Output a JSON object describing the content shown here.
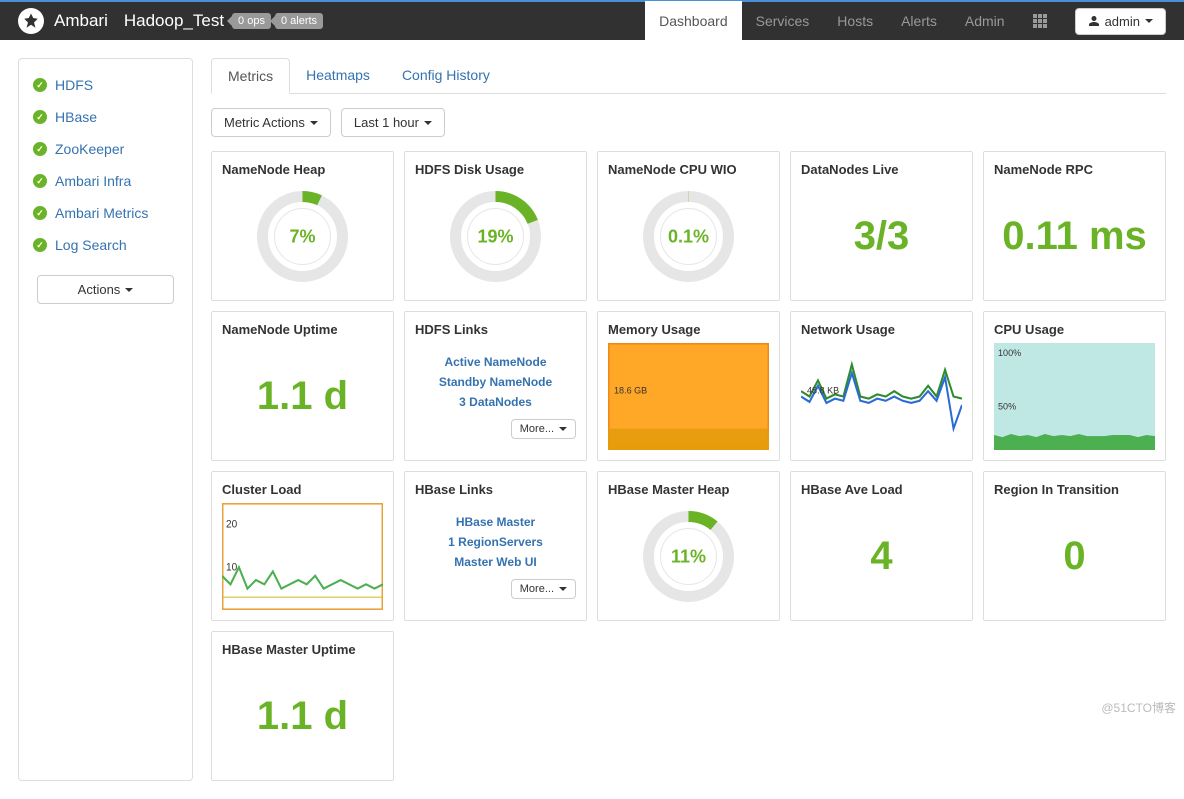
{
  "colors": {
    "accent": "#6bb326",
    "link": "#3572b0",
    "border": "#dddddd",
    "navbg": "#313131",
    "muted": "#999999"
  },
  "topnav": {
    "brand": "Ambari",
    "cluster": "Hadoop_Test",
    "badges": {
      "ops": "0 ops",
      "alerts": "0 alerts"
    },
    "items": [
      {
        "label": "Dashboard",
        "active": true
      },
      {
        "label": "Services"
      },
      {
        "label": "Hosts"
      },
      {
        "label": "Alerts"
      },
      {
        "label": "Admin"
      }
    ],
    "user_label": "admin"
  },
  "sidebar": {
    "items": [
      {
        "label": "HDFS"
      },
      {
        "label": "HBase"
      },
      {
        "label": "ZooKeeper"
      },
      {
        "label": "Ambari Infra"
      },
      {
        "label": "Ambari Metrics"
      },
      {
        "label": "Log Search"
      }
    ],
    "actions_label": "Actions"
  },
  "tabs": [
    {
      "label": "Metrics",
      "active": true
    },
    {
      "label": "Heatmaps"
    },
    {
      "label": "Config History"
    }
  ],
  "toolbar": {
    "metric_actions": "Metric Actions",
    "time_range": "Last 1 hour"
  },
  "more_label": "More...",
  "widgets": {
    "nn_heap": {
      "title": "NameNode Heap",
      "type": "donut",
      "pct": 7,
      "label": "7%",
      "ring_color": "#6bb326",
      "track_color": "#e6e6e6"
    },
    "hdfs_disk": {
      "title": "HDFS Disk Usage",
      "type": "donut",
      "pct": 19,
      "label": "19%",
      "ring_color": "#6bb326",
      "track_color": "#e6e6e6"
    },
    "nn_cpu": {
      "title": "NameNode CPU WIO",
      "type": "donut",
      "pct": 0.1,
      "label": "0.1%",
      "ring_color": "#6bb326",
      "track_color": "#e6e6e6"
    },
    "dn_live": {
      "title": "DataNodes Live",
      "type": "bignum",
      "value": "3/3"
    },
    "nn_rpc": {
      "title": "NameNode RPC",
      "type": "bignum",
      "value": "0.11 ms"
    },
    "nn_uptime": {
      "title": "NameNode Uptime",
      "type": "bignum",
      "value": "1.1 d"
    },
    "hdfs_links": {
      "title": "HDFS Links",
      "type": "links",
      "links": [
        "Active NameNode",
        "Standby NameNode",
        "3 DataNodes"
      ]
    },
    "mem": {
      "title": "Memory Usage",
      "type": "area",
      "annotation": "18.6 GB",
      "border_color": "#b030b0",
      "y_max": 40,
      "series": [
        {
          "color": "#d8c030",
          "values": [
            3,
            3,
            3,
            3,
            3,
            3,
            3,
            3,
            3,
            3,
            3,
            3,
            3,
            3,
            3,
            3,
            3,
            3,
            3,
            3
          ]
        },
        {
          "color": "#4caf50",
          "values": [
            5,
            5,
            5,
            5,
            5,
            5,
            5,
            5,
            5,
            5,
            5,
            5,
            5,
            5,
            5,
            5,
            5,
            5,
            5,
            5
          ]
        },
        {
          "color": "#ff9800",
          "values": [
            35,
            35,
            35,
            35,
            35,
            35,
            35,
            35,
            35,
            35,
            35,
            35,
            35,
            35,
            35,
            35,
            35,
            35,
            35,
            35
          ]
        }
      ]
    },
    "net": {
      "title": "Network Usage",
      "type": "line",
      "annotation": "48.8 KB",
      "y_max": 100,
      "series": [
        {
          "color": "#2e8b2e",
          "width": 2,
          "values": [
            55,
            50,
            65,
            48,
            52,
            50,
            80,
            50,
            48,
            52,
            50,
            55,
            50,
            48,
            50,
            60,
            50,
            75,
            50,
            48
          ]
        },
        {
          "color": "#2a6bd4",
          "width": 2,
          "values": [
            50,
            45,
            60,
            44,
            48,
            46,
            72,
            46,
            44,
            48,
            46,
            50,
            46,
            44,
            46,
            55,
            46,
            68,
            20,
            42
          ]
        }
      ]
    },
    "cpu": {
      "title": "CPU Usage",
      "type": "stacked",
      "bg_color": "#bfe7e3",
      "y_labels": [
        "100%",
        "50%"
      ],
      "y_max": 100,
      "series": [
        {
          "color": "#d88a2e",
          "values": [
            10,
            9,
            11,
            10,
            10,
            9,
            11,
            10,
            10,
            10,
            11,
            10,
            9,
            10,
            10,
            11,
            10,
            9,
            10,
            10
          ]
        },
        {
          "color": "#4caf50",
          "values": [
            4,
            3,
            4,
            3,
            4,
            3,
            4,
            3,
            4,
            3,
            4,
            3,
            4,
            3,
            4,
            3,
            4,
            3,
            4,
            3
          ]
        }
      ]
    },
    "cluster_load": {
      "title": "Cluster Load",
      "type": "line_framed",
      "border_color": "#e8a33d",
      "y_ticks": [
        10,
        20
      ],
      "y_max": 25,
      "series": [
        {
          "color": "#4caf50",
          "width": 2,
          "values": [
            8,
            6,
            10,
            5,
            7,
            6,
            9,
            5,
            6,
            7,
            6,
            8,
            5,
            6,
            7,
            6,
            5,
            6,
            5,
            6
          ]
        },
        {
          "color": "#d8c030",
          "width": 1,
          "values": [
            3,
            3,
            3,
            3,
            3,
            3,
            3,
            3,
            3,
            3,
            3,
            3,
            3,
            3,
            3,
            3,
            3,
            3,
            3,
            3
          ]
        }
      ]
    },
    "hbase_links": {
      "title": "HBase Links",
      "type": "links",
      "links": [
        "HBase Master",
        "1 RegionServers",
        "Master Web UI"
      ]
    },
    "hbase_heap": {
      "title": "HBase Master Heap",
      "type": "donut",
      "pct": 11,
      "label": "11%",
      "ring_color": "#6bb326",
      "track_color": "#e6e6e6"
    },
    "hbase_load": {
      "title": "HBase Ave Load",
      "type": "bignum",
      "value": "4"
    },
    "region_trans": {
      "title": "Region In Transition",
      "type": "bignum",
      "value": "0"
    },
    "hbase_uptime": {
      "title": "HBase Master Uptime",
      "type": "bignum",
      "value": "1.1 d"
    }
  },
  "widget_order": [
    "nn_heap",
    "hdfs_disk",
    "nn_cpu",
    "dn_live",
    "nn_rpc",
    "nn_uptime",
    "hdfs_links",
    "mem",
    "net",
    "cpu",
    "cluster_load",
    "hbase_links",
    "hbase_heap",
    "hbase_load",
    "region_trans",
    "hbase_uptime"
  ],
  "watermark": "@51CTO博客"
}
